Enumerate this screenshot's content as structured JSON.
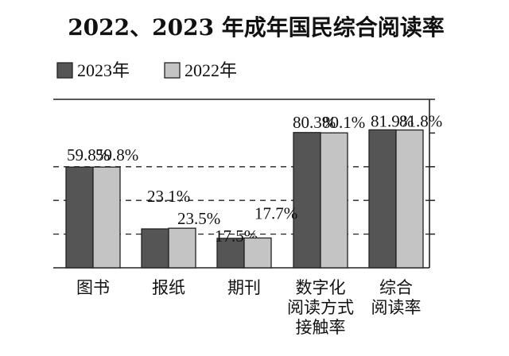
{
  "chart_data": {
    "type": "bar",
    "title": "2022、2023 年成年国民综合阅读率",
    "categories": [
      [
        "图书"
      ],
      [
        "报纸"
      ],
      [
        "期刊"
      ],
      [
        "数字化",
        "阅读方式",
        "接触率"
      ],
      [
        "综合",
        "阅读率"
      ]
    ],
    "series": [
      {
        "name": "2023年",
        "values": [
          59.8,
          23.1,
          17.5,
          80.3,
          81.9
        ],
        "labels": [
          "59.8%",
          "23.1%",
          "17.5%",
          "80.3%",
          "81.9%"
        ],
        "color": "#555555"
      },
      {
        "name": "2022年",
        "values": [
          59.8,
          23.5,
          17.7,
          80.1,
          81.8
        ],
        "labels": [
          "59.8%",
          "23.5%",
          "17.7%",
          "80.1%",
          "81.8%"
        ],
        "color": "#c4c4c4"
      }
    ],
    "ylim": [
      0,
      100
    ],
    "legend": "top-left",
    "grid": "dashed"
  }
}
